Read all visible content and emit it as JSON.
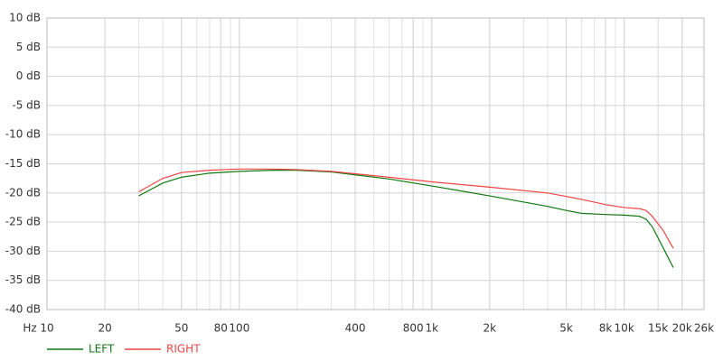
{
  "chart_data": {
    "type": "line",
    "xscale": "log",
    "x_label": "Hz",
    "grid": true,
    "legend": "bottom-left",
    "x": [
      30,
      40,
      50,
      70,
      100,
      150,
      200,
      300,
      400,
      600,
      1000,
      2000,
      4000,
      5000,
      6000,
      8000,
      10000,
      12000,
      13000,
      14000,
      16000,
      18000
    ],
    "series": [
      {
        "name": "LEFT",
        "color": "#117711",
        "values": [
          -20.5,
          -18.3,
          -17.3,
          -16.6,
          -16.3,
          -16.1,
          -16.1,
          -16.4,
          -16.9,
          -17.6,
          -18.8,
          -20.5,
          -22.3,
          -23.0,
          -23.5,
          -23.7,
          -23.8,
          -24.0,
          -24.5,
          -25.8,
          -29.5,
          -32.8
        ]
      },
      {
        "name": "RIGHT",
        "color": "#ee4444",
        "values": [
          -19.8,
          -17.5,
          -16.5,
          -16.1,
          -15.9,
          -15.9,
          -16.0,
          -16.3,
          -16.7,
          -17.3,
          -18.1,
          -19.0,
          -20.0,
          -20.6,
          -21.1,
          -22.0,
          -22.5,
          -22.7,
          -23.0,
          -24.0,
          -26.5,
          -29.5
        ]
      }
    ],
    "xlim": [
      10,
      26000
    ],
    "xticks": [
      10,
      20,
      50,
      80,
      100,
      400,
      800,
      {
        "value": 1000,
        "label": "1k"
      },
      {
        "value": 2000,
        "label": "2k"
      },
      {
        "value": 5000,
        "label": "5k"
      },
      {
        "value": 8000,
        "label": "8k"
      },
      {
        "value": 10000,
        "label": "10k"
      },
      {
        "value": 15000,
        "label": "15k"
      },
      {
        "value": 20000,
        "label": "20k"
      },
      {
        "value": 26000,
        "label": "26k"
      }
    ],
    "ylim": [
      -40,
      10
    ],
    "yticks": [
      {
        "value": 10,
        "label": "10 dB"
      },
      {
        "value": 5,
        "label": "5 dB"
      },
      {
        "value": 0,
        "label": "0 dB"
      },
      {
        "value": -5,
        "label": "-5 dB"
      },
      {
        "value": -10,
        "label": "-10 dB"
      },
      {
        "value": -15,
        "label": "-15 dB"
      },
      {
        "value": -20,
        "label": "-20 dB"
      },
      {
        "value": -25,
        "label": "-25 dB"
      },
      {
        "value": -30,
        "label": "-30 dB"
      },
      {
        "value": -35,
        "label": "-35 dB"
      },
      {
        "value": -40,
        "label": "-40 dB"
      }
    ]
  }
}
